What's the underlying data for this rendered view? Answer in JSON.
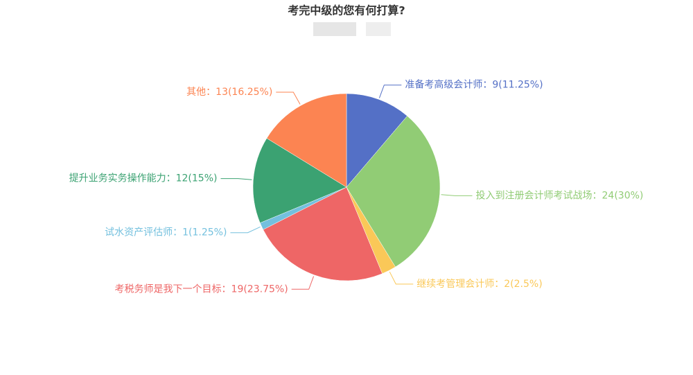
{
  "chart_data": {
    "type": "pie",
    "title": "考完中级的您有何打算?",
    "categories": [
      "准备考高级会计师",
      "投入到注册会计师考试战场",
      "继续考管理会计师",
      "考税务师是我下一个目标",
      "试水资产评估师",
      "提升业务实务操作能力",
      "其他"
    ],
    "values": [
      9,
      24,
      2,
      19,
      1,
      12,
      13
    ],
    "value_labels": [
      "9(11.25%)",
      "24(30%)",
      "2(2.5%)",
      "19(23.75%)",
      "1(1.25%)",
      "12(15%)",
      "13(16.25%)"
    ],
    "label_separator": "：",
    "colors": [
      "#5470c6",
      "#91cc75",
      "#fac858",
      "#ee6666",
      "#73c0de",
      "#3ba272",
      "#fc8452"
    ]
  }
}
